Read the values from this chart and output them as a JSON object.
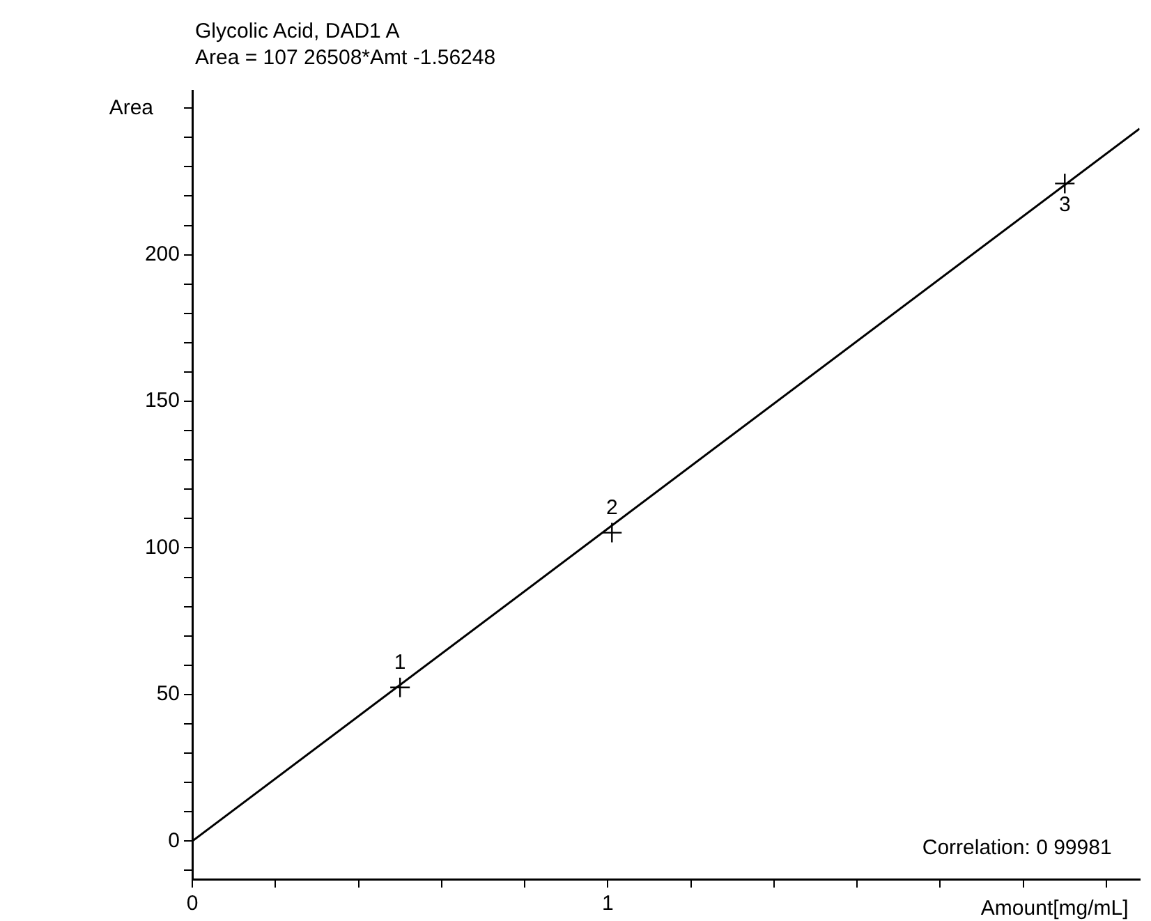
{
  "chart_data": {
    "type": "scatter",
    "title": "Glycolic Acid, DAD1 A",
    "subtitle": "Area = 107 26508*Amt -1.56248",
    "xlabel": "Amount[mg/mL]",
    "ylabel": "Area",
    "series": [
      {
        "color": "#000000",
        "marker": "cross",
        "x": [
          0.5,
          1.01,
          2.1
        ],
        "values": [
          52.4,
          105.2,
          224.3
        ]
      },
      {
        "type": "line",
        "color": "#000000",
        "marker": "none",
        "x": [
          0,
          2.28
        ],
        "values": [
          0,
          243
        ]
      }
    ],
    "xlim": [
      0,
      2.28
    ],
    "ylim": [
      -13,
      256
    ],
    "xticks": [
      0,
      {
        "value": 0.2,
        "label": null
      },
      {
        "value": 0.4,
        "label": null
      },
      {
        "value": 0.6,
        "label": null
      },
      {
        "value": 0.8,
        "label": null
      },
      1,
      {
        "value": 1.2,
        "label": null
      },
      {
        "value": 1.4,
        "label": null
      },
      {
        "value": 1.6,
        "label": null
      },
      {
        "value": 1.8,
        "label": null
      },
      {
        "value": 2,
        "label": null
      },
      {
        "value": 2.2,
        "label": null
      }
    ],
    "yticks": [
      {
        "value": -10,
        "label": null
      },
      0,
      {
        "value": 10,
        "label": null
      },
      {
        "value": 20,
        "label": null
      },
      {
        "value": 30,
        "label": null
      },
      {
        "value": 40,
        "label": null
      },
      50,
      {
        "value": 60,
        "label": null
      },
      {
        "value": 70,
        "label": null
      },
      {
        "value": 80,
        "label": null
      },
      {
        "value": 90,
        "label": null
      },
      100,
      {
        "value": 110,
        "label": null
      },
      {
        "value": 120,
        "label": null
      },
      {
        "value": 130,
        "label": null
      },
      {
        "value": 140,
        "label": null
      },
      150,
      {
        "value": 160,
        "label": null
      },
      {
        "value": 170,
        "label": null
      },
      {
        "value": 180,
        "label": null
      },
      {
        "value": 190,
        "label": null
      },
      200,
      {
        "value": 210,
        "label": null
      },
      {
        "value": 220,
        "label": null
      },
      {
        "value": 230,
        "label": null
      },
      {
        "value": 240,
        "label": null
      },
      {
        "value": 250,
        "label": null
      }
    ],
    "annotations": [
      {
        "text": "1",
        "x": 0.5,
        "y": 52.4
      },
      {
        "text": "2",
        "x": 1.01,
        "y": 105.2
      },
      {
        "text": "3",
        "x": 2.1,
        "y": 224.3
      },
      "Correlation: 0 99981"
    ],
    "grid": false,
    "legend": false
  }
}
